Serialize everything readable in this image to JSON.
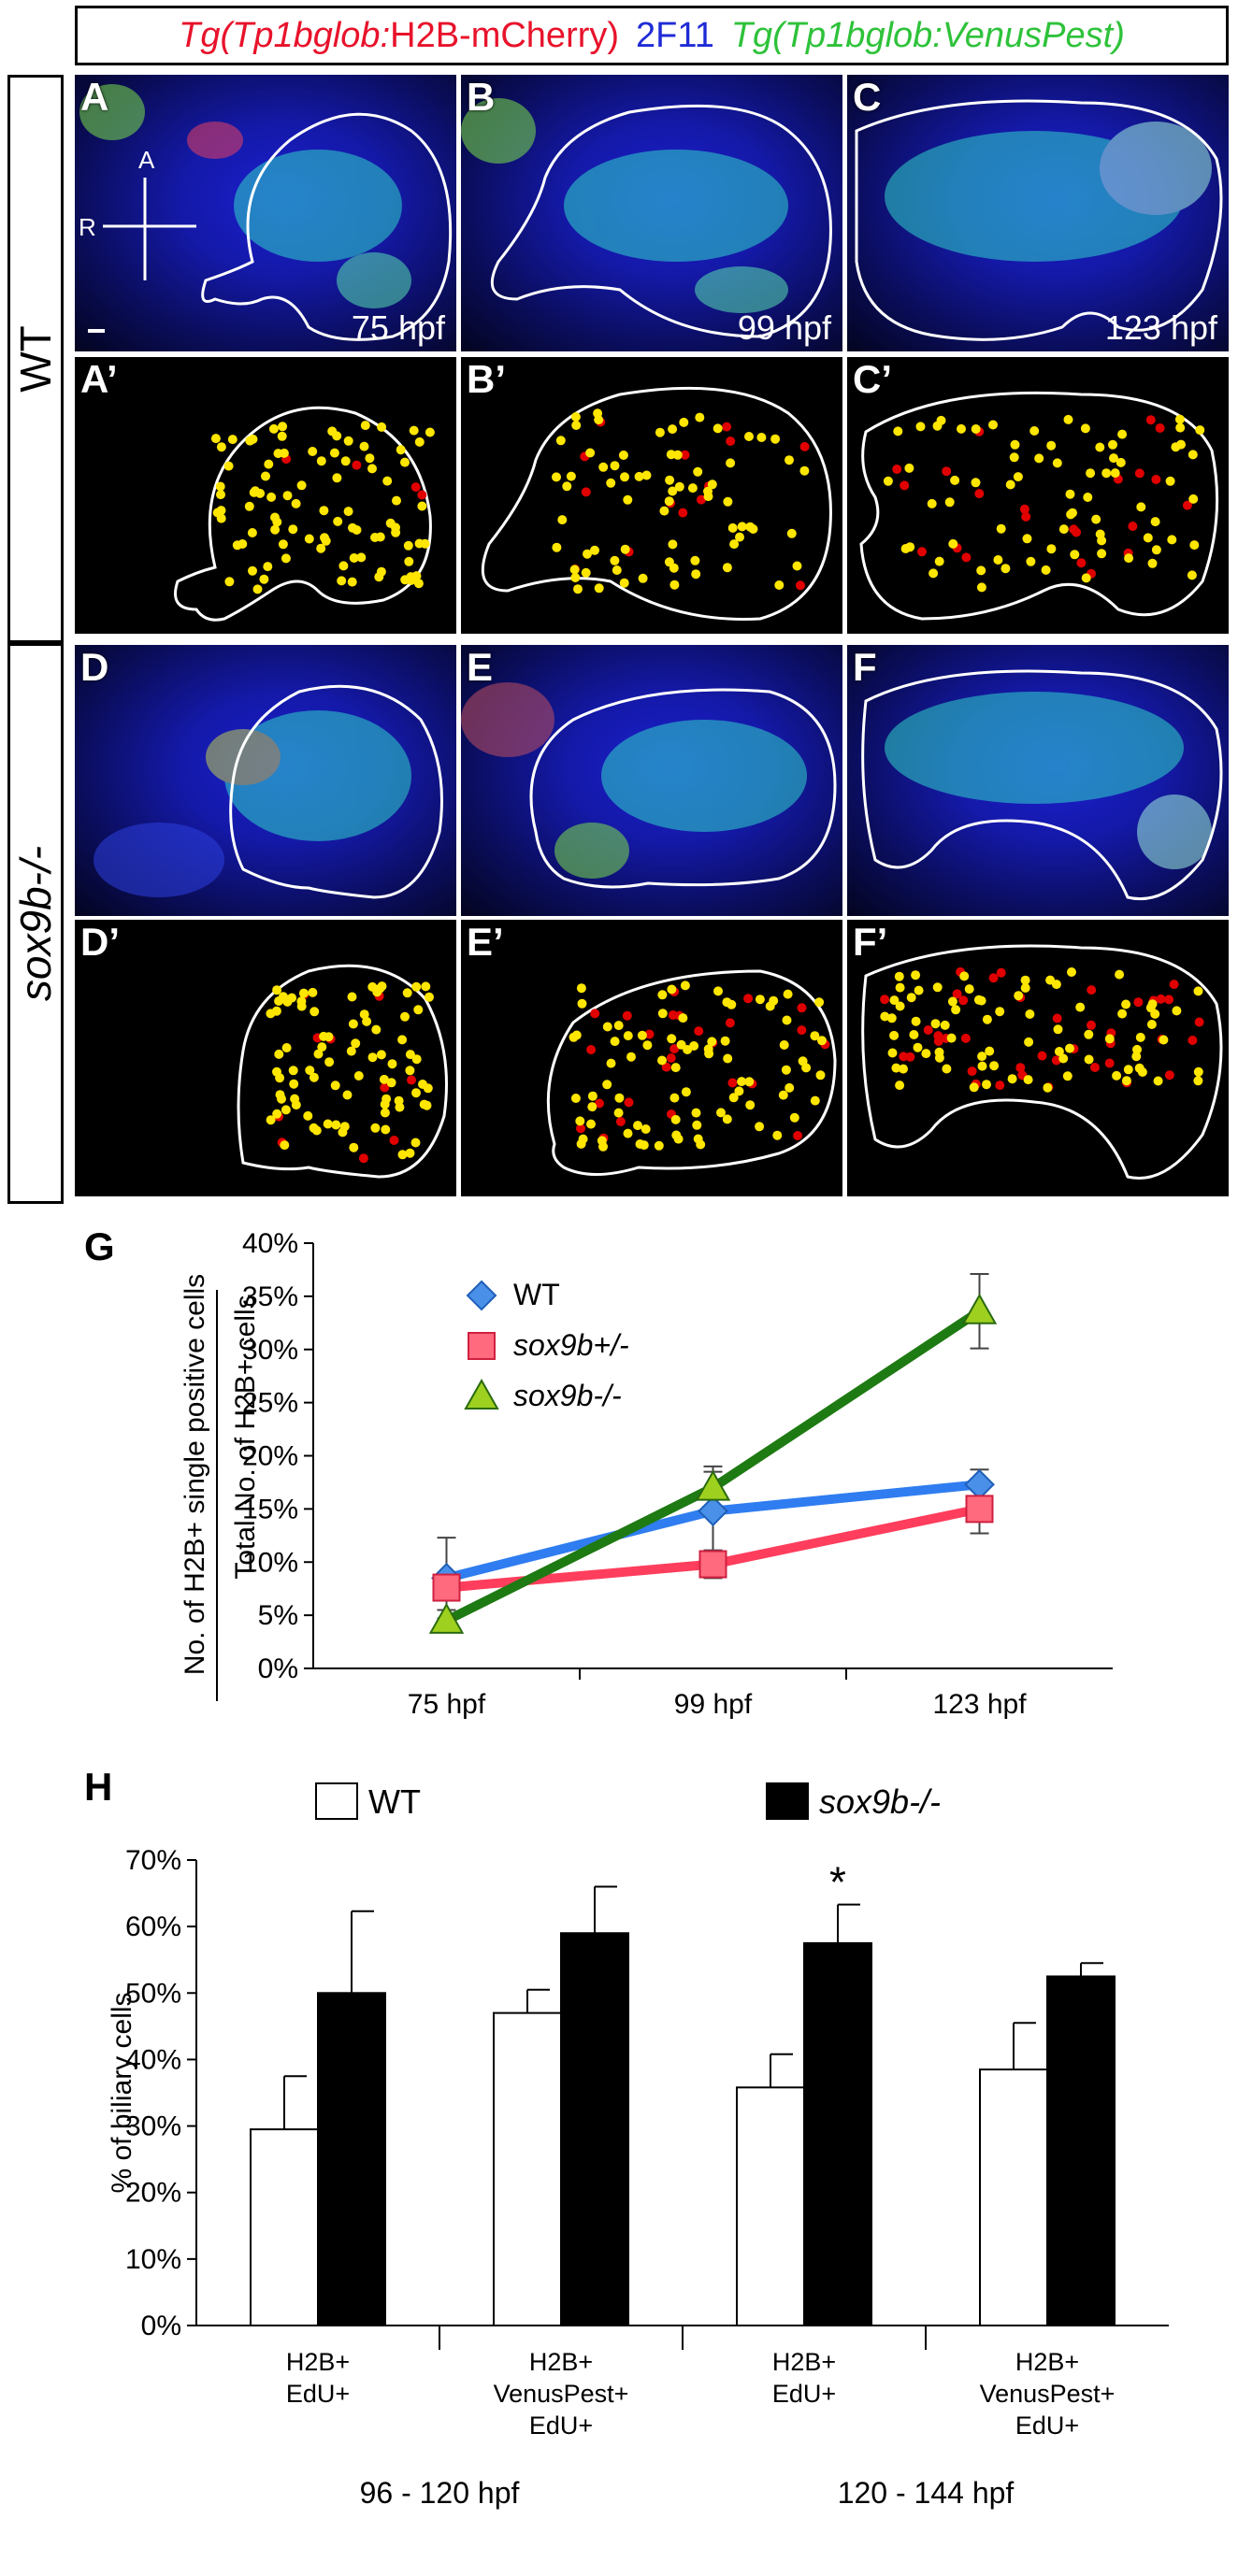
{
  "legend": {
    "tg1_prefix": "Tg(Tp1bglob:",
    "tg1_suffix": "H2B-mCherry)",
    "antibody": "2F11",
    "tg2": "Tg(Tp1bglob:VenusPest)"
  },
  "rows": {
    "wt": "WT",
    "mutant": "sox9b-/-"
  },
  "panels": {
    "A": {
      "label": "A",
      "time": "75 hpf"
    },
    "B": {
      "label": "B",
      "time": "99 hpf"
    },
    "C": {
      "label": "C",
      "time": "123 hpf"
    },
    "A2": {
      "label": "A’"
    },
    "B2": {
      "label": "B’"
    },
    "C2": {
      "label": "C’"
    },
    "D": {
      "label": "D"
    },
    "E": {
      "label": "E"
    },
    "F": {
      "label": "F"
    },
    "D2": {
      "label": "D’"
    },
    "E2": {
      "label": "E’"
    },
    "F2": {
      "label": "F’"
    }
  },
  "axes_cross": {
    "a": "A",
    "r": "R"
  },
  "colors": {
    "red": "#e8122b",
    "blue": "#1f2bd6",
    "green": "#2ec23a",
    "wt_line": "#2f7df0",
    "het_line": "#ff3d5c",
    "ko_line": "#1e7a12",
    "dot_yellow": "#ffe600",
    "dot_red": "#e00000"
  },
  "chart_data": [
    {
      "panel": "G",
      "type": "line",
      "categories": [
        "75 hpf",
        "99 hpf",
        "123 hpf"
      ],
      "ylim": [
        0,
        40
      ],
      "yticks": [
        "0%",
        "5%",
        "10%",
        "15%",
        "20%",
        "25%",
        "30%",
        "35%",
        "40%"
      ],
      "ylabel_top": "No. of H2B+ single positive cells",
      "ylabel_bottom": "Total No. of H2B+ cells",
      "series": [
        {
          "name": "WT",
          "values": [
            8.5,
            14.8,
            17.3
          ],
          "errors": [
            3.8,
            3.7,
            1.4
          ],
          "marker": "diamond"
        },
        {
          "name": "sox9b+/-",
          "values": [
            7.6,
            9.8,
            15.0
          ],
          "errors": [
            1.2,
            1.3,
            2.3
          ],
          "marker": "square"
        },
        {
          "name": "sox9b-/-",
          "values": [
            4.5,
            17.0,
            33.6
          ],
          "errors": [
            1.0,
            2.0,
            3.5
          ],
          "marker": "triangle"
        }
      ]
    },
    {
      "panel": "H",
      "type": "bar",
      "categories": [
        "H2B+\nEdU+",
        "H2B+\nVenusPest+\nEdU+",
        "H2B+\nEdU+",
        "H2B+\nVenusPest+\nEdU+"
      ],
      "groups": [
        "96 - 120 hpf",
        "120 - 144 hpf"
      ],
      "ylabel": "% of biliary cells",
      "ylim": [
        0,
        70
      ],
      "yticks": [
        "0%",
        "10%",
        "20%",
        "30%",
        "40%",
        "50%",
        "60%",
        "70%"
      ],
      "series": [
        {
          "name": "WT",
          "values": [
            29.5,
            47.0,
            35.8,
            38.5
          ],
          "errors": [
            8.0,
            3.5,
            5.0,
            7.0
          ]
        },
        {
          "name": "sox9b-/-",
          "values": [
            50.0,
            59.0,
            57.5,
            52.5
          ],
          "errors": [
            12.3,
            7.0,
            5.8,
            2.0
          ]
        }
      ],
      "annotations": [
        "*"
      ]
    }
  ]
}
